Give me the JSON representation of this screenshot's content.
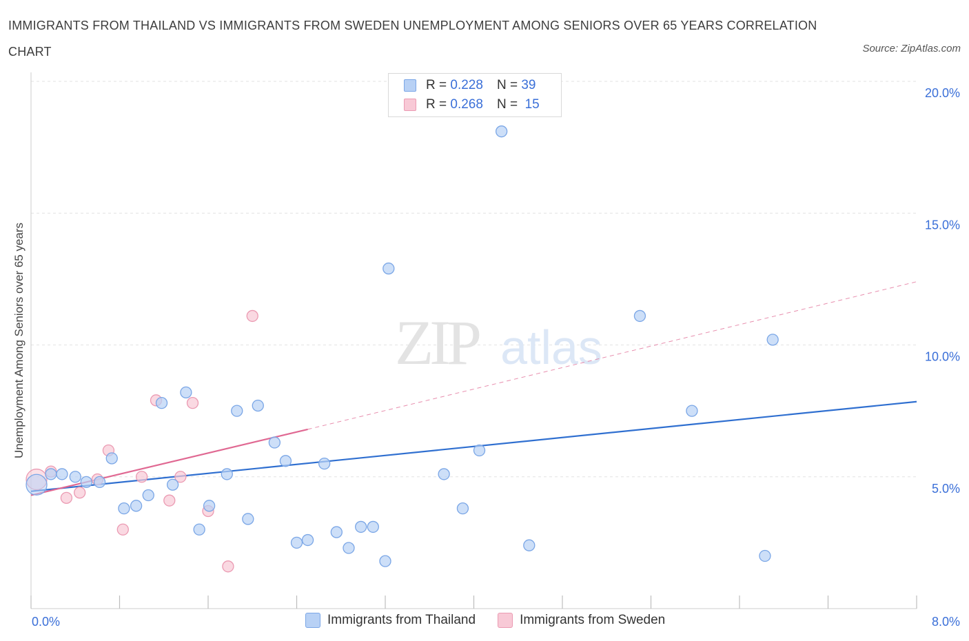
{
  "title": "IMMIGRANTS FROM THAILAND VS IMMIGRANTS FROM SWEDEN UNEMPLOYMENT AMONG SENIORS OVER 65 YEARS CORRELATION CHART",
  "source": "Source: ZipAtlas.com",
  "watermark": {
    "zip": "ZIP",
    "atlas": "atlas"
  },
  "legend": {
    "rows": [
      {
        "r_label": "R =",
        "r_value": "0.228",
        "n_label": "N =",
        "n_value": "39"
      },
      {
        "r_label": "R =",
        "r_value": "0.268",
        "n_label": "N =",
        "n_value": "15"
      }
    ]
  },
  "colors": {
    "thailand_fill": "#b8d1f5",
    "thailand_stroke": "#7aa6e6",
    "thailand_line": "#2f6fd0",
    "sweden_fill": "#f8c9d6",
    "sweden_stroke": "#eb9ab2",
    "sweden_line": "#e06892",
    "tick_label": "#3a6fd8",
    "grid": "#e2e2e2"
  },
  "chart_data": {
    "type": "scatter",
    "title": "IMMIGRANTS FROM THAILAND VS IMMIGRANTS FROM SWEDEN UNEMPLOYMENT AMONG SENIORS OVER 65 YEARS CORRELATION CHART",
    "xlabel": "",
    "ylabel": "Unemployment Among Seniors over 65 years",
    "xlim": [
      0,
      8
    ],
    "ylim": [
      0,
      20
    ],
    "x_tick_labels": [
      "0.0%",
      "8.0%"
    ],
    "y_ticks": [
      5,
      10,
      15,
      20
    ],
    "y_tick_labels": [
      "5.0%",
      "10.0%",
      "15.0%",
      "20.0%"
    ],
    "grid": true,
    "legend_position": "bottom",
    "series": [
      {
        "name": "Immigrants from Thailand",
        "color": "#7aa6e6",
        "points": [
          [
            0.05,
            4.7
          ],
          [
            0.18,
            5.1
          ],
          [
            0.28,
            5.1
          ],
          [
            0.4,
            5.0
          ],
          [
            0.5,
            4.8
          ],
          [
            0.62,
            4.8
          ],
          [
            0.73,
            5.7
          ],
          [
            0.84,
            3.8
          ],
          [
            0.95,
            3.9
          ],
          [
            1.06,
            4.3
          ],
          [
            1.18,
            7.8
          ],
          [
            1.28,
            4.7
          ],
          [
            1.4,
            8.2
          ],
          [
            1.52,
            3.0
          ],
          [
            1.61,
            3.9
          ],
          [
            1.77,
            5.1
          ],
          [
            1.86,
            7.5
          ],
          [
            1.96,
            3.4
          ],
          [
            2.05,
            7.7
          ],
          [
            2.2,
            6.3
          ],
          [
            2.3,
            5.6
          ],
          [
            2.4,
            2.5
          ],
          [
            2.5,
            2.6
          ],
          [
            2.65,
            5.5
          ],
          [
            2.76,
            2.9
          ],
          [
            2.87,
            2.3
          ],
          [
            2.98,
            3.1
          ],
          [
            3.09,
            3.1
          ],
          [
            3.2,
            1.8
          ],
          [
            3.23,
            12.9
          ],
          [
            3.73,
            5.1
          ],
          [
            3.9,
            3.8
          ],
          [
            4.05,
            6.0
          ],
          [
            4.25,
            18.1
          ],
          [
            4.5,
            2.4
          ],
          [
            5.5,
            11.1
          ],
          [
            5.97,
            7.5
          ],
          [
            6.63,
            2.0
          ],
          [
            6.7,
            10.2
          ]
        ],
        "trend": {
          "x": [
            0,
            8
          ],
          "y": [
            4.45,
            7.85
          ],
          "style": "solid"
        }
      },
      {
        "name": "Immigrants from Sweden",
        "color": "#eb9ab2",
        "points": [
          [
            0.05,
            4.9
          ],
          [
            0.18,
            5.2
          ],
          [
            0.32,
            4.2
          ],
          [
            0.44,
            4.4
          ],
          [
            0.6,
            4.9
          ],
          [
            0.7,
            6.0
          ],
          [
            0.83,
            3.0
          ],
          [
            1.0,
            5.0
          ],
          [
            1.13,
            7.9
          ],
          [
            1.25,
            4.1
          ],
          [
            1.35,
            5.0
          ],
          [
            1.46,
            7.8
          ],
          [
            1.6,
            3.7
          ],
          [
            1.78,
            1.6
          ],
          [
            2.0,
            11.1
          ]
        ],
        "trend": {
          "x": [
            0,
            2.5
          ],
          "y": [
            4.3,
            6.8
          ],
          "style": "solid",
          "extension": {
            "x": [
              2.5,
              8
            ],
            "y": [
              6.8,
              12.4
            ],
            "style": "dashed"
          }
        }
      }
    ]
  }
}
